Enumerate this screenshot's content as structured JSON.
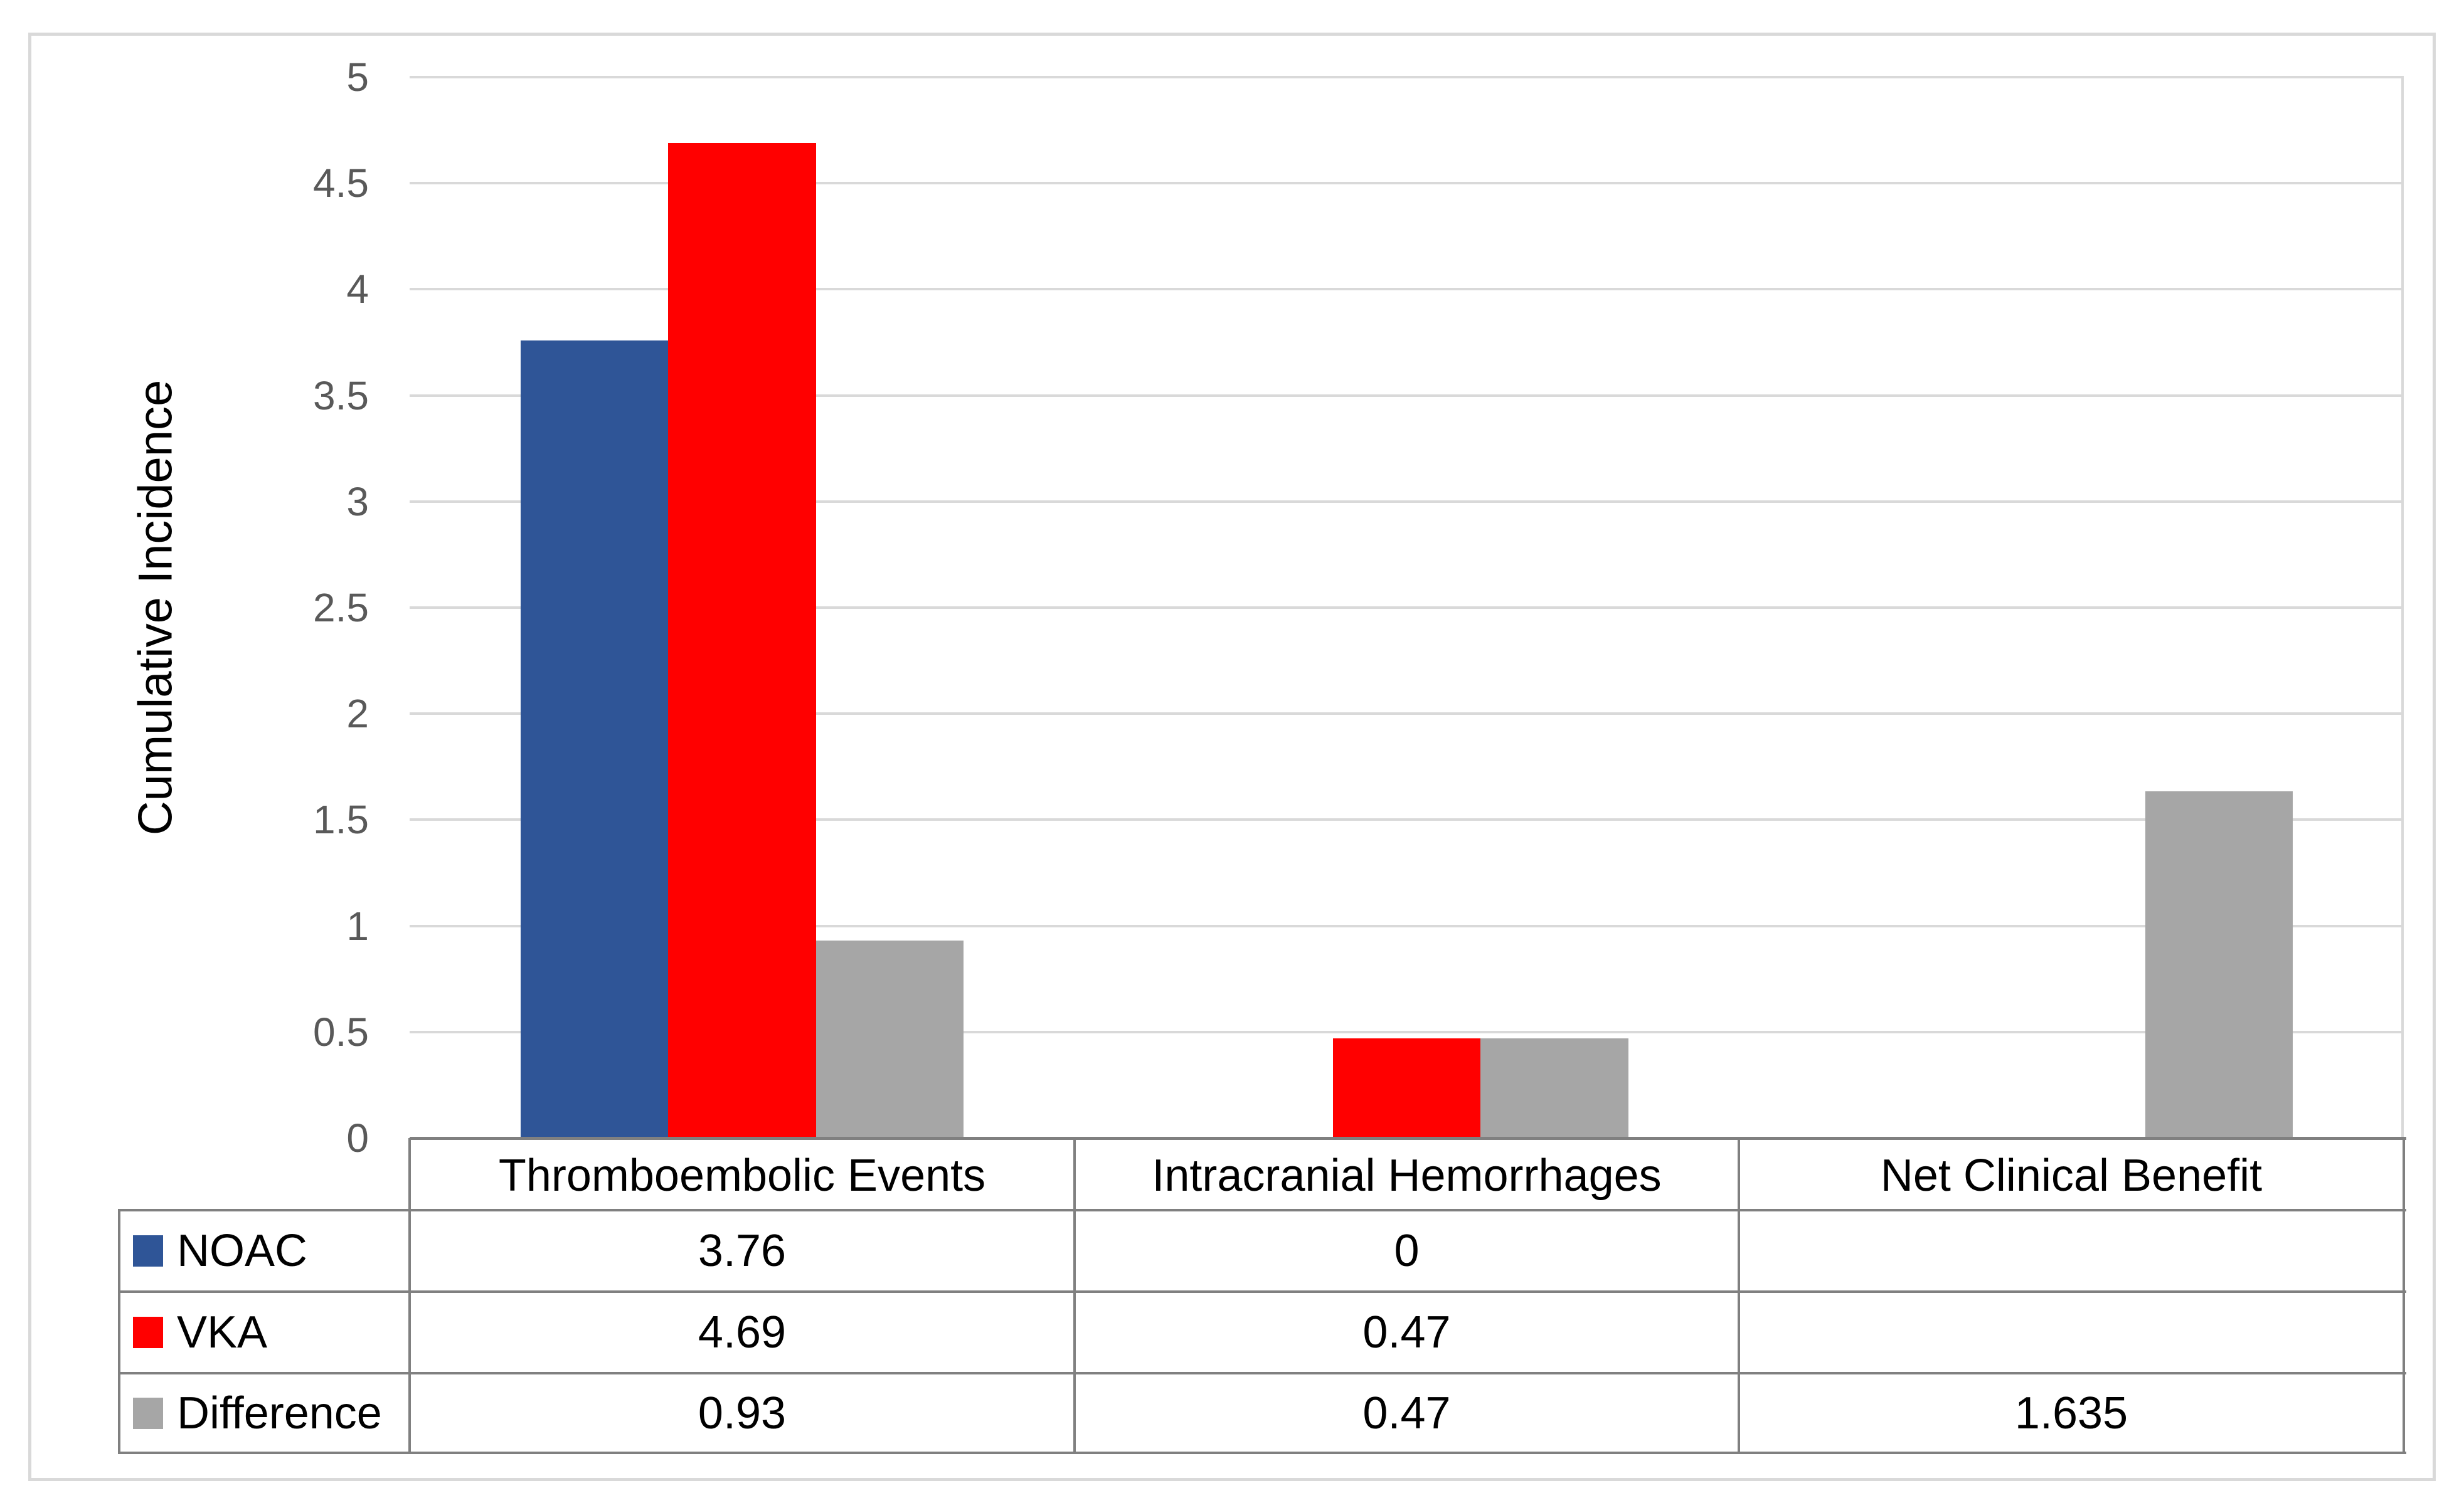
{
  "figure": {
    "background": "#FFFFFF",
    "frame_border_color": "#D9D9D9"
  },
  "chart_data": {
    "type": "bar",
    "title": "",
    "xlabel": "",
    "ylabel": "Cumulative Incidence",
    "categories": [
      "Thromboembolic Events",
      "Intracranial Hemorrhages",
      "Net Clinical Benefit"
    ],
    "series": [
      {
        "name": "NOAC",
        "color": "#2F5597",
        "values": [
          3.76,
          0,
          null
        ]
      },
      {
        "name": "VKA",
        "color": "#FF0000",
        "values": [
          4.69,
          0.47,
          null
        ]
      },
      {
        "name": "Difference",
        "color": "#A6A6A6",
        "values": [
          0.93,
          0.47,
          1.635
        ]
      }
    ],
    "ylim": [
      0,
      5
    ],
    "ytick_step": 0.5,
    "yticks": [
      "5",
      "4.5",
      "4",
      "3.5",
      "3",
      "2.5",
      "2",
      "1.5",
      "1",
      "0.5",
      "0"
    ],
    "grid": true,
    "gridline_color": "#D9D9D9",
    "tick_label_color": "#595959",
    "gap_width_percent": 150,
    "legend_position": "data-table-left"
  },
  "data_table": {
    "border_color": "#808080",
    "columns": [
      "Thromboembolic Events",
      "Intracranial Hemorrhages",
      "Net Clinical Benefit"
    ],
    "rows": [
      {
        "label": "NOAC",
        "swatch_color": "#2F5597",
        "cells": [
          "3.76",
          "0",
          ""
        ]
      },
      {
        "label": "VKA",
        "swatch_color": "#FF0000",
        "cells": [
          "4.69",
          "0.47",
          ""
        ]
      },
      {
        "label": "Difference",
        "swatch_color": "#A6A6A6",
        "cells": [
          "0.93",
          "0.47",
          "1.635"
        ]
      }
    ]
  }
}
